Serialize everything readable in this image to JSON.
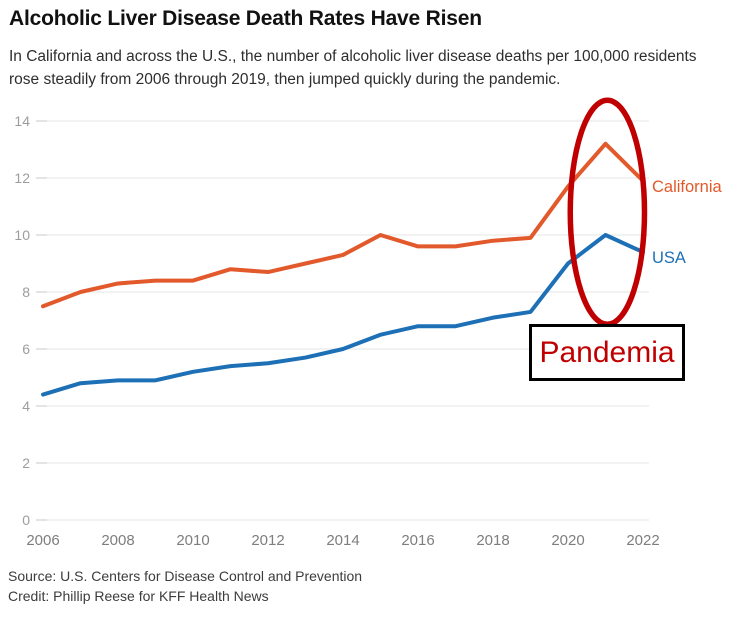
{
  "page": {
    "title": "Alcoholic Liver Disease Death Rates Have Risen",
    "subtitle": "In California and across the U.S., the number of alcoholic liver disease deaths per 100,000 residents rose steadily from 2006 through 2019, then jumped quickly during the pandemic.",
    "source": "Source: U.S. Centers for Disease Control and Prevention",
    "credit": "Credit: Phillip Reese for KFF Health News"
  },
  "chart_data": {
    "type": "line",
    "title": "Alcoholic Liver Disease Death Rates Have Risen",
    "xlabel": "",
    "ylabel": "deaths per 100,000 residents",
    "x": [
      2006,
      2007,
      2008,
      2009,
      2010,
      2011,
      2012,
      2013,
      2014,
      2015,
      2016,
      2017,
      2018,
      2019,
      2020,
      2021,
      2022
    ],
    "series": [
      {
        "name": "California",
        "color": "#e2592b",
        "values": [
          7.5,
          8.0,
          8.3,
          8.4,
          8.4,
          8.8,
          8.7,
          9.0,
          9.3,
          10.0,
          9.6,
          9.6,
          9.8,
          9.9,
          11.7,
          13.2,
          11.9
        ]
      },
      {
        "name": "USA",
        "color": "#1d70b6",
        "values": [
          4.4,
          4.8,
          4.9,
          4.9,
          5.2,
          5.4,
          5.5,
          5.7,
          6.0,
          6.5,
          6.8,
          6.8,
          7.1,
          7.3,
          9.0,
          10.0,
          9.4
        ]
      }
    ],
    "ylim": [
      0,
      14
    ],
    "yticks": [
      0,
      2,
      4,
      6,
      8,
      10,
      12,
      14
    ],
    "xticks": [
      2006,
      2008,
      2010,
      2012,
      2014,
      2016,
      2018,
      2020,
      2022
    ],
    "grid": true,
    "legend_position": "right-end-labels",
    "annotations": {
      "ellipse": {
        "x_center": 2021.05,
        "y_center": 10.8,
        "rx_years": 0.99,
        "ry_units": 3.93,
        "color": "#c00000",
        "stroke_width": 5.5
      },
      "pandemia_label": {
        "text": "Pandemia",
        "color": "#c00000",
        "border_color": "#000000"
      }
    },
    "axis_colors": {
      "grid": "#e4e4e4",
      "tick": "#c9c9c9",
      "y_labels": "#9d9d9d",
      "x_labels": "#7e7e7e"
    }
  }
}
